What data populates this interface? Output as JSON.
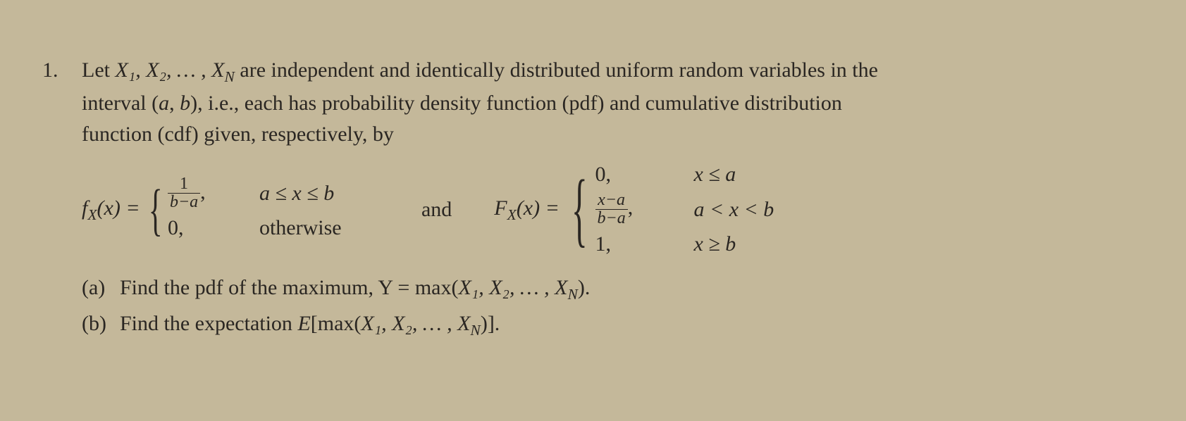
{
  "background_color": "#c4b89a",
  "text_color": "#2a2622",
  "font_family": "Times New Roman",
  "base_fontsize_pt": 22,
  "problem_number": "1.",
  "intro_line1_prefix": "Let ",
  "rv_sequence": "X₁, X₂, … , X",
  "rv_sub_N": "N",
  "intro_line1_rest": " are independent and identically distributed uniform random variables in the",
  "intro_line2_prefix": "interval (",
  "interval_a": "a",
  "interval_comma": ", ",
  "interval_b": "b",
  "intro_line2_rest": "), i.e., each has probability density function (pdf) and cumulative distribution",
  "intro_line3": "function (cdf) given, respectively, by",
  "pdf": {
    "lhs_f": "f",
    "lhs_sub": "X",
    "lhs_arg": "(x) = ",
    "cases": [
      {
        "value_top": "1",
        "value_bot": "b−a",
        "value_suffix": ",",
        "condition": "a ≤ x ≤ b"
      },
      {
        "value": "0,",
        "condition": "otherwise"
      }
    ]
  },
  "and_word": "and",
  "cdf": {
    "lhs_F": "F",
    "lhs_sub": "X",
    "lhs_arg": "(x) = ",
    "cases": [
      {
        "value": "0,",
        "condition": "x ≤ a"
      },
      {
        "value_top": "x−a",
        "value_bot": "b−a",
        "value_suffix": ",",
        "condition": "a < x < b"
      },
      {
        "value": "1,",
        "condition": "x ≥ b"
      }
    ]
  },
  "part_a": {
    "label": "(a)",
    "text_prefix": "Find the pdf of the maximum, Y = max(",
    "seq": "X₁, X₂, … , X",
    "sub_N": "N",
    "text_suffix": ")."
  },
  "part_b": {
    "label": "(b)",
    "text_prefix": "Find the expectation ",
    "E": "E",
    "bracket_open": "[max(",
    "seq": "X₁, X₂, … , X",
    "sub_N": "N",
    "bracket_close": ")]."
  }
}
